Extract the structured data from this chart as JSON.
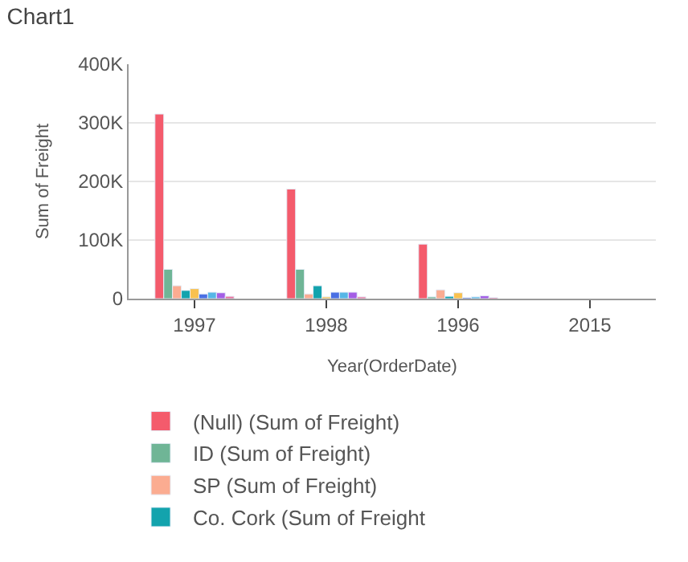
{
  "chart_data": {
    "type": "bar",
    "title": "Chart1",
    "xlabel": "Year(OrderDate)",
    "ylabel": "Sum of Freight",
    "categories": [
      "1997",
      "1998",
      "1996",
      "2015"
    ],
    "series": [
      {
        "name": "(Null) (Sum of Freight)",
        "color": "#f45b6c",
        "values": [
          315000,
          187000,
          93000,
          null
        ]
      },
      {
        "name": "ID (Sum of Freight)",
        "color": "#6fb596",
        "values": [
          50000,
          50000,
          3000,
          null
        ]
      },
      {
        "name": "SP (Sum of Freight)",
        "color": "#fbac91",
        "values": [
          22000,
          8000,
          15000,
          null
        ]
      },
      {
        "name": "Co. Cork (Sum of Freight",
        "color": "#13a3ad",
        "values": [
          14000,
          22000,
          4000,
          null
        ]
      },
      {
        "color": "#f9c14f",
        "values": [
          17000,
          3000,
          10000,
          null
        ]
      },
      {
        "color": "#4a6fe3",
        "values": [
          8000,
          11000,
          2000,
          null
        ]
      },
      {
        "color": "#55b6e6",
        "values": [
          11000,
          11000,
          3000,
          null
        ]
      },
      {
        "color": "#a45ee5",
        "values": [
          10000,
          11000,
          5000,
          null
        ]
      },
      {
        "color": "#e86f9a",
        "values": [
          4000,
          3000,
          2000,
          null
        ]
      }
    ],
    "ylim": [
      0,
      400000
    ],
    "yticks": [
      {
        "value": 0,
        "label": "0"
      },
      {
        "value": 100000,
        "label": "100K"
      },
      {
        "value": 200000,
        "label": "200K"
      },
      {
        "value": 300000,
        "label": "300K"
      },
      {
        "value": 400000,
        "label": "400K"
      }
    ],
    "grid": "y",
    "legend": "bottom"
  }
}
